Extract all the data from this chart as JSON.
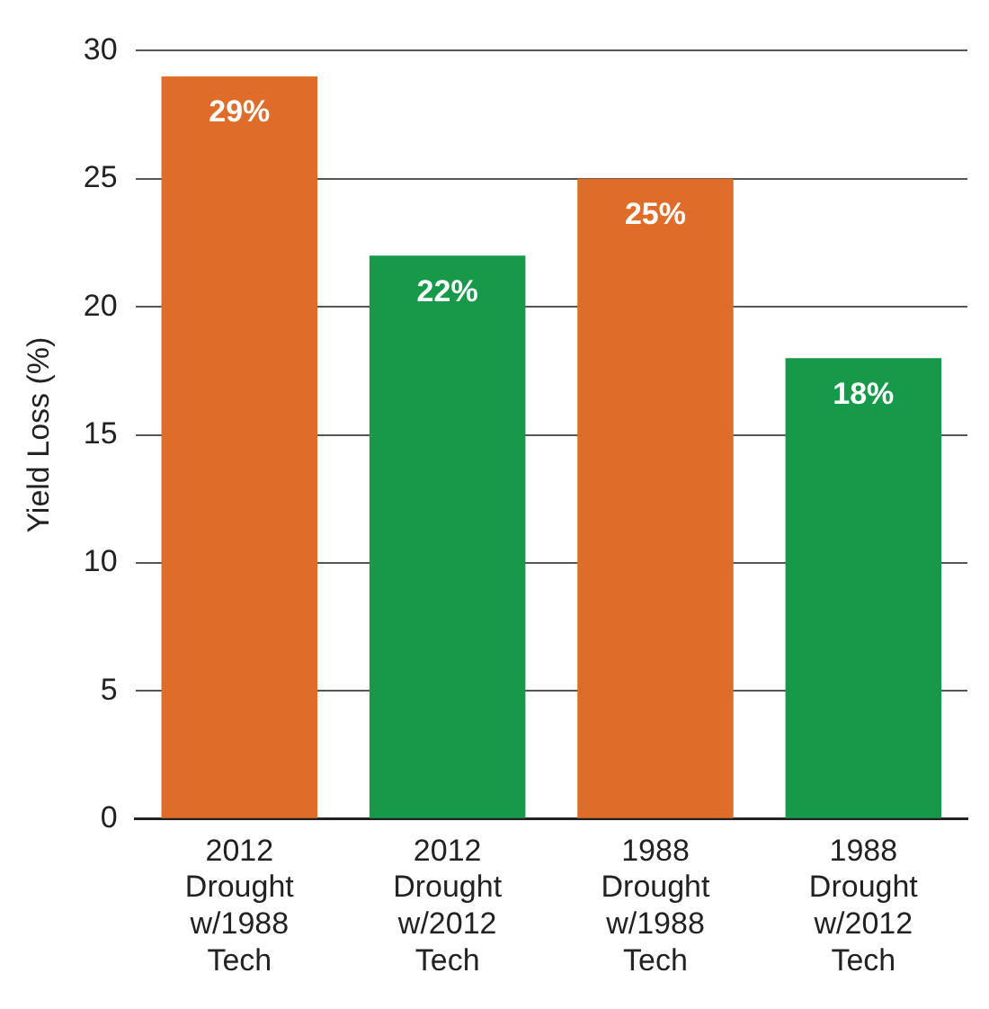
{
  "chart_data": {
    "type": "bar",
    "ylabel": "Yield Loss (%)",
    "categories": [
      "2012 Drought w/1988 Tech",
      "2012 Drought w/2012 Tech",
      "1988 Drought w/1988 Tech",
      "1988 Drought w/2012 Tech"
    ],
    "values": [
      29,
      22,
      25,
      18
    ],
    "colors": [
      "#e06c2a",
      "#17994a",
      "#e06c2a",
      "#17994a"
    ],
    "value_labels": [
      "29%",
      "22%",
      "25%",
      "18%"
    ],
    "ylim": [
      0,
      30
    ],
    "yticks": [
      0,
      5,
      10,
      15,
      20,
      25,
      30
    ],
    "grid": "y",
    "legend": false
  }
}
